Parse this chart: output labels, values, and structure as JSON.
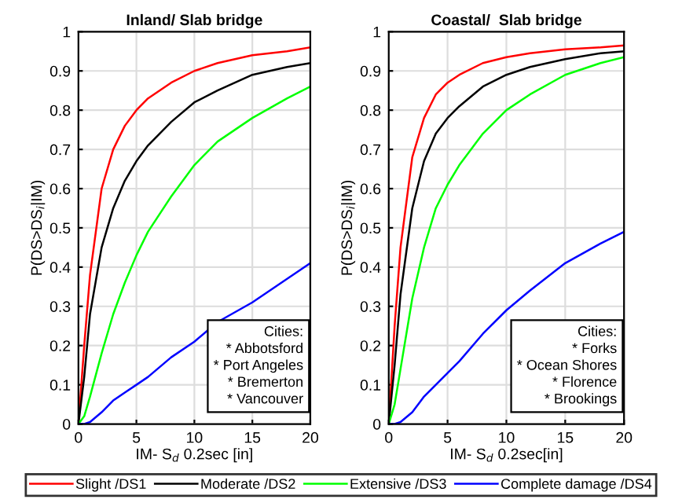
{
  "chart_data": [
    {
      "type": "line",
      "title": "Inland/ Slab bridge",
      "xlabel": "IM- S$_{d}$ 0.2sec [in]",
      "ylabel": "P(DS>DS$_{i}$|IM)",
      "xlim": [
        0,
        20
      ],
      "ylim": [
        0,
        1
      ],
      "xticks": [
        0,
        5,
        10,
        15,
        20
      ],
      "yticks": [
        0,
        0.1,
        0.2,
        0.3,
        0.4,
        0.5,
        0.6,
        0.7,
        0.8,
        0.9,
        1
      ],
      "grid": true,
      "legend": "bottom",
      "annotations": [
        "Cities:\n* Abbotsford\n* Port Angeles\n* Bremerton\n* Vancouver"
      ],
      "x": [
        0,
        0.5,
        1,
        2,
        3,
        4,
        5,
        6,
        8,
        10,
        12,
        15,
        18,
        20
      ],
      "series": [
        {
          "name": "Slight /DS1",
          "color": "#ff0000",
          "values": [
            0,
            0.2,
            0.38,
            0.6,
            0.7,
            0.76,
            0.8,
            0.83,
            0.87,
            0.9,
            0.92,
            0.94,
            0.95,
            0.96
          ]
        },
        {
          "name": "Moderate /DS2",
          "color": "#000000",
          "values": [
            0,
            0.12,
            0.28,
            0.45,
            0.55,
            0.62,
            0.67,
            0.71,
            0.77,
            0.82,
            0.85,
            0.89,
            0.91,
            0.92
          ]
        },
        {
          "name": "Extensive /DS3",
          "color": "#00ff00",
          "values": [
            0,
            0.02,
            0.07,
            0.18,
            0.28,
            0.36,
            0.43,
            0.49,
            0.58,
            0.66,
            0.72,
            0.78,
            0.83,
            0.86
          ]
        },
        {
          "name": "Complete damage /DS4",
          "color": "#0000ff",
          "values": [
            0,
            0,
            0.005,
            0.03,
            0.06,
            0.08,
            0.1,
            0.12,
            0.17,
            0.21,
            0.26,
            0.31,
            0.37,
            0.41
          ]
        }
      ]
    },
    {
      "type": "line",
      "title": "Coastal/  Slab bridge",
      "xlabel": "IM- S$_{d}$ 0.2sec[in]",
      "ylabel": "P(DS>DS$_{i}$|IM)",
      "xlim": [
        0,
        20
      ],
      "ylim": [
        0,
        1
      ],
      "xticks": [
        0,
        5,
        10,
        15,
        20
      ],
      "yticks": [
        0,
        0.1,
        0.2,
        0.3,
        0.4,
        0.5,
        0.6,
        0.7,
        0.8,
        0.9,
        1
      ],
      "grid": true,
      "annotations": [
        "Cities:\n* Forks\n* Ocean Shores\n* Florence\n* Brookings"
      ],
      "x": [
        0,
        0.5,
        1,
        2,
        3,
        4,
        5,
        6,
        8,
        10,
        12,
        15,
        18,
        20
      ],
      "series": [
        {
          "color": "#ff0000",
          "values": [
            0,
            0.25,
            0.45,
            0.68,
            0.78,
            0.84,
            0.87,
            0.89,
            0.92,
            0.935,
            0.945,
            0.955,
            0.96,
            0.965
          ]
        },
        {
          "color": "#000000",
          "values": [
            0,
            0.15,
            0.33,
            0.55,
            0.67,
            0.74,
            0.78,
            0.81,
            0.86,
            0.89,
            0.91,
            0.93,
            0.945,
            0.95
          ]
        },
        {
          "color": "#00ff00",
          "values": [
            0,
            0.05,
            0.14,
            0.32,
            0.45,
            0.55,
            0.61,
            0.66,
            0.74,
            0.8,
            0.84,
            0.89,
            0.92,
            0.935
          ]
        },
        {
          "color": "#0000ff",
          "values": [
            0,
            0,
            0.005,
            0.03,
            0.07,
            0.1,
            0.13,
            0.16,
            0.23,
            0.29,
            0.34,
            0.41,
            0.46,
            0.49
          ]
        }
      ]
    }
  ]
}
